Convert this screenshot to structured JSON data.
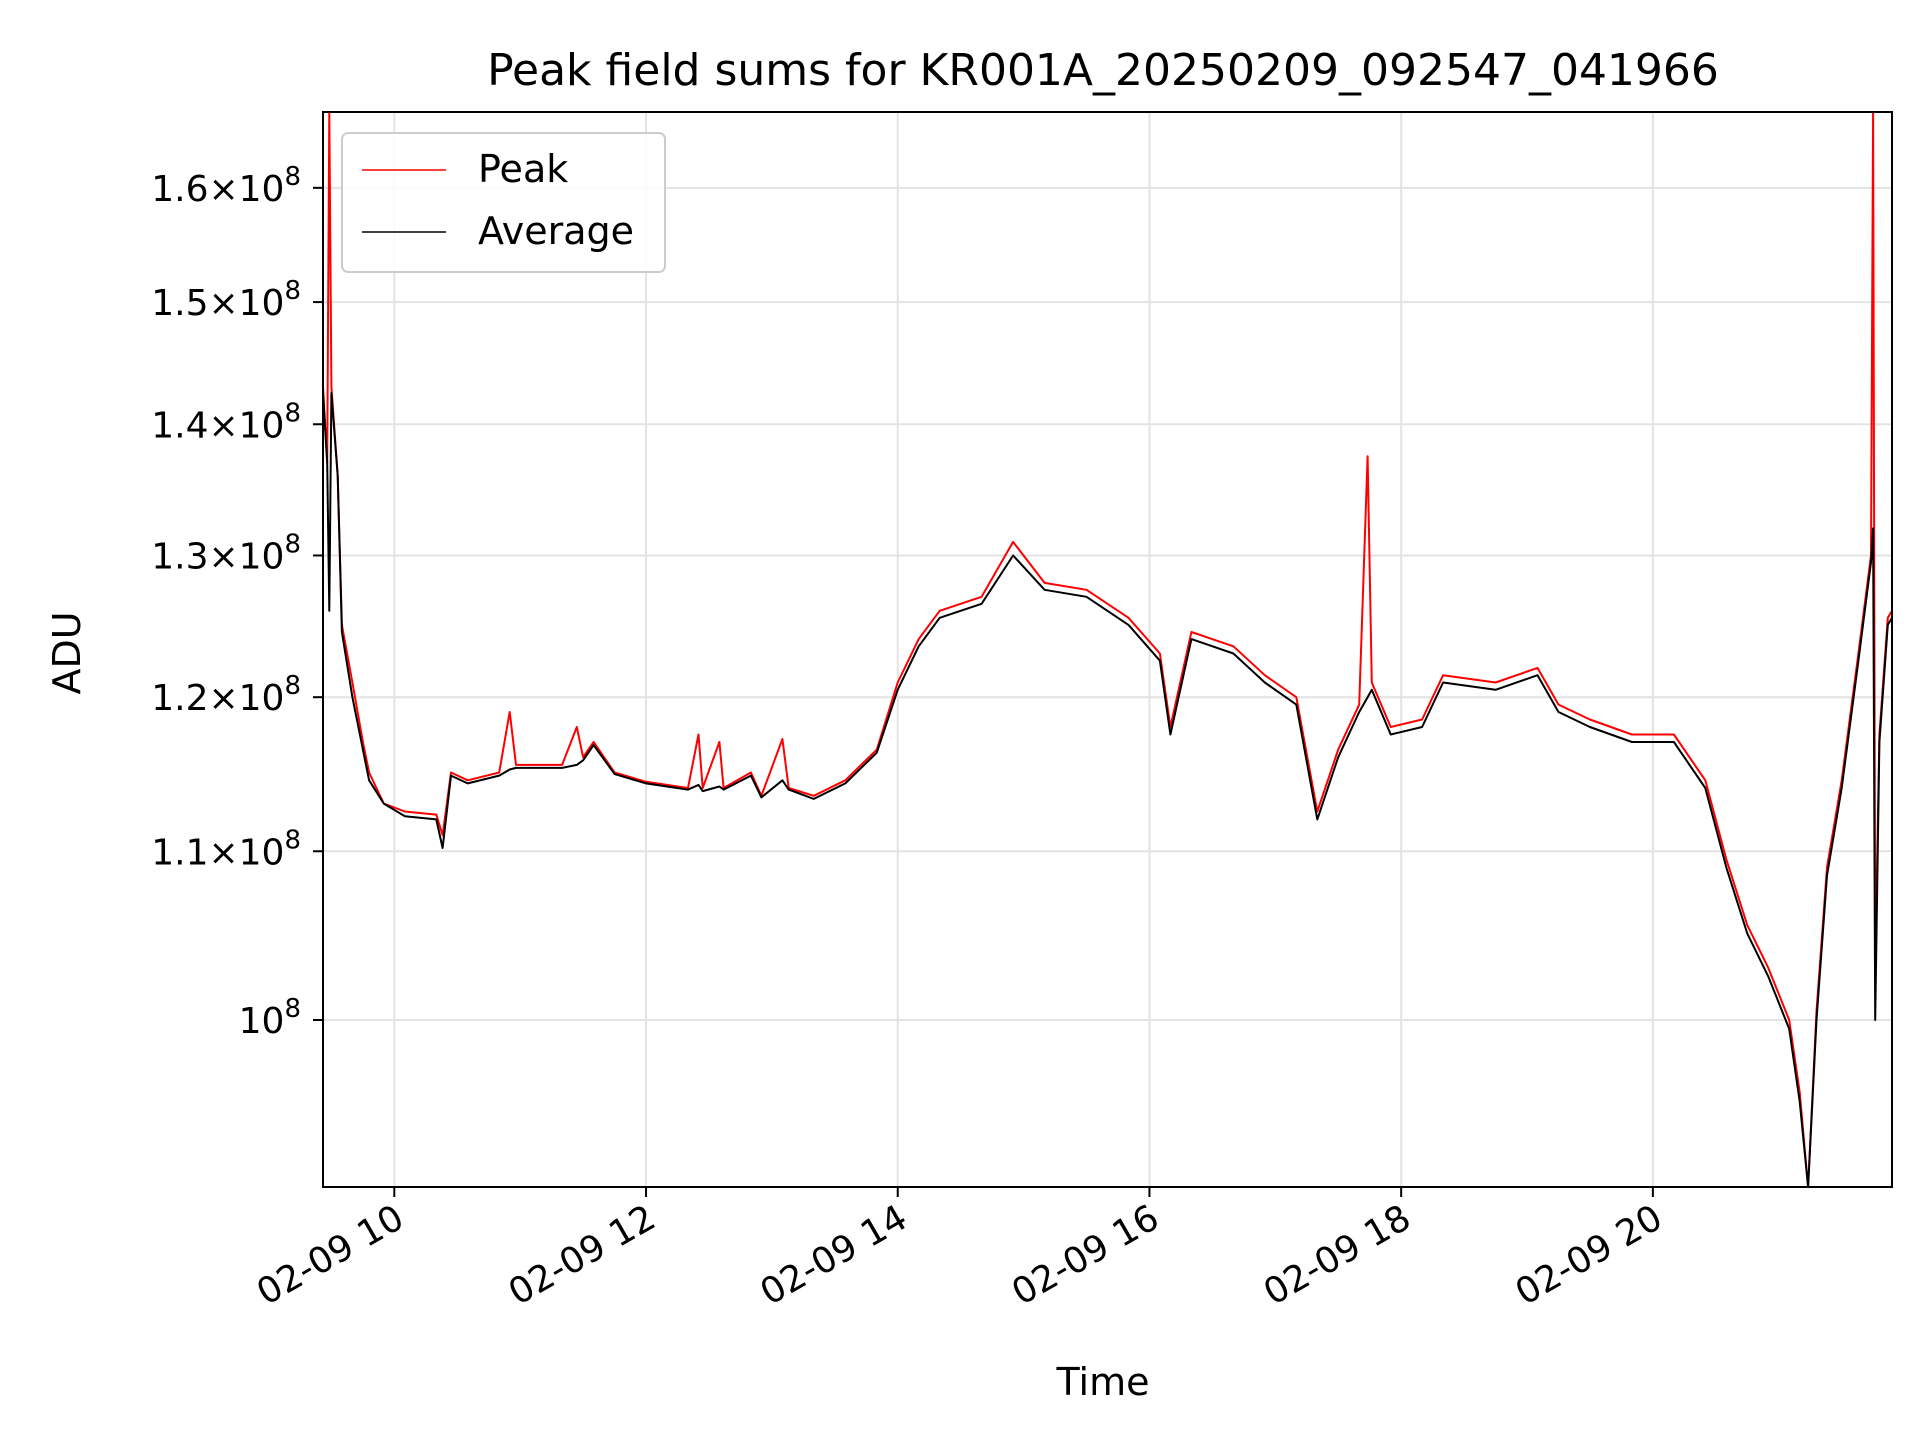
{
  "chart_data": {
    "type": "line",
    "title": "Peak field sums for KR001A_20250209_092547_041966",
    "xlabel": "Time",
    "ylabel": "ADU",
    "y_scale": "log",
    "ylim": [
      91000000,
      167000000
    ],
    "xlim": [
      "2025-02-09 09:26",
      "2025-02-09 21:54"
    ],
    "grid": true,
    "legend_position": "top-left",
    "x_ticks": [
      {
        "t": "2025-02-09 10:00",
        "label": "02-09 10"
      },
      {
        "t": "2025-02-09 12:00",
        "label": "02-09 12"
      },
      {
        "t": "2025-02-09 14:00",
        "label": "02-09 14"
      },
      {
        "t": "2025-02-09 16:00",
        "label": "02-09 16"
      },
      {
        "t": "2025-02-09 18:00",
        "label": "02-09 18"
      },
      {
        "t": "2025-02-09 20:00",
        "label": "02-09 20"
      }
    ],
    "y_ticks": [
      {
        "value": 100000000,
        "mantissa": "",
        "exponent": "8"
      },
      {
        "value": 110000000,
        "mantissa": "1.1",
        "exponent": "8"
      },
      {
        "value": 120000000,
        "mantissa": "1.2",
        "exponent": "8"
      },
      {
        "value": 130000000,
        "mantissa": "1.3",
        "exponent": "8"
      },
      {
        "value": 140000000,
        "mantissa": "1.4",
        "exponent": "8"
      },
      {
        "value": 150000000,
        "mantissa": "1.5",
        "exponent": "8"
      },
      {
        "value": 160000000,
        "mantissa": "1.6",
        "exponent": "8"
      }
    ],
    "series": [
      {
        "name": "Peak",
        "color": "#ff0000",
        "points": [
          [
            "2025-02-09 09:26",
            143000000
          ],
          [
            "2025-02-09 09:28",
            137000000
          ],
          [
            "2025-02-09 09:29",
            167000000
          ],
          [
            "2025-02-09 09:30",
            143000000
          ],
          [
            "2025-02-09 09:33",
            136000000
          ],
          [
            "2025-02-09 09:35",
            125000000
          ],
          [
            "2025-02-09 09:40",
            121000000
          ],
          [
            "2025-02-09 09:45",
            117000000
          ],
          [
            "2025-02-09 09:48",
            115000000
          ],
          [
            "2025-02-09 09:55",
            113000000
          ],
          [
            "2025-02-09 10:05",
            112500000
          ],
          [
            "2025-02-09 10:20",
            112300000
          ],
          [
            "2025-02-09 10:23",
            111000000
          ],
          [
            "2025-02-09 10:27",
            115000000
          ],
          [
            "2025-02-09 10:35",
            114500000
          ],
          [
            "2025-02-09 10:50",
            115000000
          ],
          [
            "2025-02-09 10:55",
            119000000
          ],
          [
            "2025-02-09 10:58",
            115500000
          ],
          [
            "2025-02-09 11:20",
            115500000
          ],
          [
            "2025-02-09 11:27",
            118000000
          ],
          [
            "2025-02-09 11:30",
            116000000
          ],
          [
            "2025-02-09 11:35",
            117000000
          ],
          [
            "2025-02-09 11:45",
            115000000
          ],
          [
            "2025-02-09 12:00",
            114400000
          ],
          [
            "2025-02-09 12:20",
            114000000
          ],
          [
            "2025-02-09 12:25",
            117500000
          ],
          [
            "2025-02-09 12:27",
            114000000
          ],
          [
            "2025-02-09 12:35",
            117000000
          ],
          [
            "2025-02-09 12:37",
            114000000
          ],
          [
            "2025-02-09 12:50",
            115000000
          ],
          [
            "2025-02-09 12:55",
            113500000
          ],
          [
            "2025-02-09 13:05",
            117200000
          ],
          [
            "2025-02-09 13:08",
            114000000
          ],
          [
            "2025-02-09 13:20",
            113500000
          ],
          [
            "2025-02-09 13:35",
            114500000
          ],
          [
            "2025-02-09 13:50",
            116500000
          ],
          [
            "2025-02-09 14:00",
            121000000
          ],
          [
            "2025-02-09 14:10",
            124000000
          ],
          [
            "2025-02-09 14:20",
            126000000
          ],
          [
            "2025-02-09 14:40",
            127000000
          ],
          [
            "2025-02-09 14:55",
            131000000
          ],
          [
            "2025-02-09 15:10",
            128000000
          ],
          [
            "2025-02-09 15:30",
            127500000
          ],
          [
            "2025-02-09 15:50",
            125500000
          ],
          [
            "2025-02-09 16:05",
            123000000
          ],
          [
            "2025-02-09 16:10",
            118000000
          ],
          [
            "2025-02-09 16:20",
            124500000
          ],
          [
            "2025-02-09 16:40",
            123500000
          ],
          [
            "2025-02-09 16:55",
            121500000
          ],
          [
            "2025-02-09 17:10",
            120000000
          ],
          [
            "2025-02-09 17:20",
            112500000
          ],
          [
            "2025-02-09 17:30",
            116500000
          ],
          [
            "2025-02-09 17:40",
            119500000
          ],
          [
            "2025-02-09 17:44",
            137500000
          ],
          [
            "2025-02-09 17:46",
            121000000
          ],
          [
            "2025-02-09 17:55",
            118000000
          ],
          [
            "2025-02-09 18:10",
            118500000
          ],
          [
            "2025-02-09 18:20",
            121500000
          ],
          [
            "2025-02-09 18:45",
            121000000
          ],
          [
            "2025-02-09 19:05",
            122000000
          ],
          [
            "2025-02-09 19:15",
            119500000
          ],
          [
            "2025-02-09 19:30",
            118500000
          ],
          [
            "2025-02-09 19:50",
            117500000
          ],
          [
            "2025-02-09 20:10",
            117500000
          ],
          [
            "2025-02-09 20:25",
            114500000
          ],
          [
            "2025-02-09 20:35",
            109500000
          ],
          [
            "2025-02-09 20:45",
            105500000
          ],
          [
            "2025-02-09 20:55",
            103000000
          ],
          [
            "2025-02-09 21:05",
            100000000
          ],
          [
            "2025-02-09 21:10",
            96000000
          ],
          [
            "2025-02-09 21:14",
            91000000
          ],
          [
            "2025-02-09 21:18",
            100500000
          ],
          [
            "2025-02-09 21:23",
            109000000
          ],
          [
            "2025-02-09 21:30",
            114500000
          ],
          [
            "2025-02-09 21:38",
            123000000
          ],
          [
            "2025-02-09 21:44",
            130000000
          ],
          [
            "2025-02-09 21:45",
            167000000
          ],
          [
            "2025-02-09 21:46",
            103000000
          ],
          [
            "2025-02-09 21:48",
            117500000
          ],
          [
            "2025-02-09 21:52",
            125500000
          ],
          [
            "2025-02-09 21:54",
            126000000
          ]
        ]
      },
      {
        "name": "Average",
        "color": "#000000",
        "points": [
          [
            "2025-02-09 09:26",
            142500000
          ],
          [
            "2025-02-09 09:28",
            137000000
          ],
          [
            "2025-02-09 09:29",
            126000000
          ],
          [
            "2025-02-09 09:30",
            142500000
          ],
          [
            "2025-02-09 09:33",
            136000000
          ],
          [
            "2025-02-09 09:35",
            124500000
          ],
          [
            "2025-02-09 09:40",
            120000000
          ],
          [
            "2025-02-09 09:45",
            116500000
          ],
          [
            "2025-02-09 09:48",
            114500000
          ],
          [
            "2025-02-09 09:55",
            113000000
          ],
          [
            "2025-02-09 10:05",
            112200000
          ],
          [
            "2025-02-09 10:20",
            112000000
          ],
          [
            "2025-02-09 10:23",
            110200000
          ],
          [
            "2025-02-09 10:27",
            114800000
          ],
          [
            "2025-02-09 10:35",
            114300000
          ],
          [
            "2025-02-09 10:50",
            114800000
          ],
          [
            "2025-02-09 10:55",
            115200000
          ],
          [
            "2025-02-09 10:58",
            115300000
          ],
          [
            "2025-02-09 11:20",
            115300000
          ],
          [
            "2025-02-09 11:27",
            115500000
          ],
          [
            "2025-02-09 11:30",
            115800000
          ],
          [
            "2025-02-09 11:35",
            116800000
          ],
          [
            "2025-02-09 11:45",
            114900000
          ],
          [
            "2025-02-09 12:00",
            114300000
          ],
          [
            "2025-02-09 12:20",
            113900000
          ],
          [
            "2025-02-09 12:25",
            114200000
          ],
          [
            "2025-02-09 12:27",
            113800000
          ],
          [
            "2025-02-09 12:35",
            114100000
          ],
          [
            "2025-02-09 12:37",
            113900000
          ],
          [
            "2025-02-09 12:50",
            114800000
          ],
          [
            "2025-02-09 12:55",
            113400000
          ],
          [
            "2025-02-09 13:05",
            114500000
          ],
          [
            "2025-02-09 13:08",
            113900000
          ],
          [
            "2025-02-09 13:20",
            113300000
          ],
          [
            "2025-02-09 13:35",
            114300000
          ],
          [
            "2025-02-09 13:50",
            116300000
          ],
          [
            "2025-02-09 14:00",
            120500000
          ],
          [
            "2025-02-09 14:10",
            123500000
          ],
          [
            "2025-02-09 14:20",
            125500000
          ],
          [
            "2025-02-09 14:40",
            126500000
          ],
          [
            "2025-02-09 14:55",
            130000000
          ],
          [
            "2025-02-09 15:10",
            127500000
          ],
          [
            "2025-02-09 15:30",
            127000000
          ],
          [
            "2025-02-09 15:50",
            125000000
          ],
          [
            "2025-02-09 16:05",
            122500000
          ],
          [
            "2025-02-09 16:10",
            117500000
          ],
          [
            "2025-02-09 16:20",
            124000000
          ],
          [
            "2025-02-09 16:40",
            123000000
          ],
          [
            "2025-02-09 16:55",
            121000000
          ],
          [
            "2025-02-09 17:10",
            119500000
          ],
          [
            "2025-02-09 17:20",
            112000000
          ],
          [
            "2025-02-09 17:30",
            116000000
          ],
          [
            "2025-02-09 17:40",
            119000000
          ],
          [
            "2025-02-09 17:44",
            120000000
          ],
          [
            "2025-02-09 17:46",
            120500000
          ],
          [
            "2025-02-09 17:55",
            117500000
          ],
          [
            "2025-02-09 18:10",
            118000000
          ],
          [
            "2025-02-09 18:20",
            121000000
          ],
          [
            "2025-02-09 18:45",
            120500000
          ],
          [
            "2025-02-09 19:05",
            121500000
          ],
          [
            "2025-02-09 19:15",
            119000000
          ],
          [
            "2025-02-09 19:30",
            118000000
          ],
          [
            "2025-02-09 19:50",
            117000000
          ],
          [
            "2025-02-09 20:10",
            117000000
          ],
          [
            "2025-02-09 20:25",
            114000000
          ],
          [
            "2025-02-09 20:35",
            109000000
          ],
          [
            "2025-02-09 20:45",
            105000000
          ],
          [
            "2025-02-09 20:55",
            102500000
          ],
          [
            "2025-02-09 21:05",
            99500000
          ],
          [
            "2025-02-09 21:10",
            95500000
          ],
          [
            "2025-02-09 21:14",
            91000000
          ],
          [
            "2025-02-09 21:18",
            100000000
          ],
          [
            "2025-02-09 21:23",
            108500000
          ],
          [
            "2025-02-09 21:30",
            114000000
          ],
          [
            "2025-02-09 21:38",
            122500000
          ],
          [
            "2025-02-09 21:44",
            129500000
          ],
          [
            "2025-02-09 21:45",
            132000000
          ],
          [
            "2025-02-09 21:46",
            100000000
          ],
          [
            "2025-02-09 21:48",
            117000000
          ],
          [
            "2025-02-09 21:52",
            125000000
          ],
          [
            "2025-02-09 21:54",
            125500000
          ]
        ]
      }
    ]
  }
}
